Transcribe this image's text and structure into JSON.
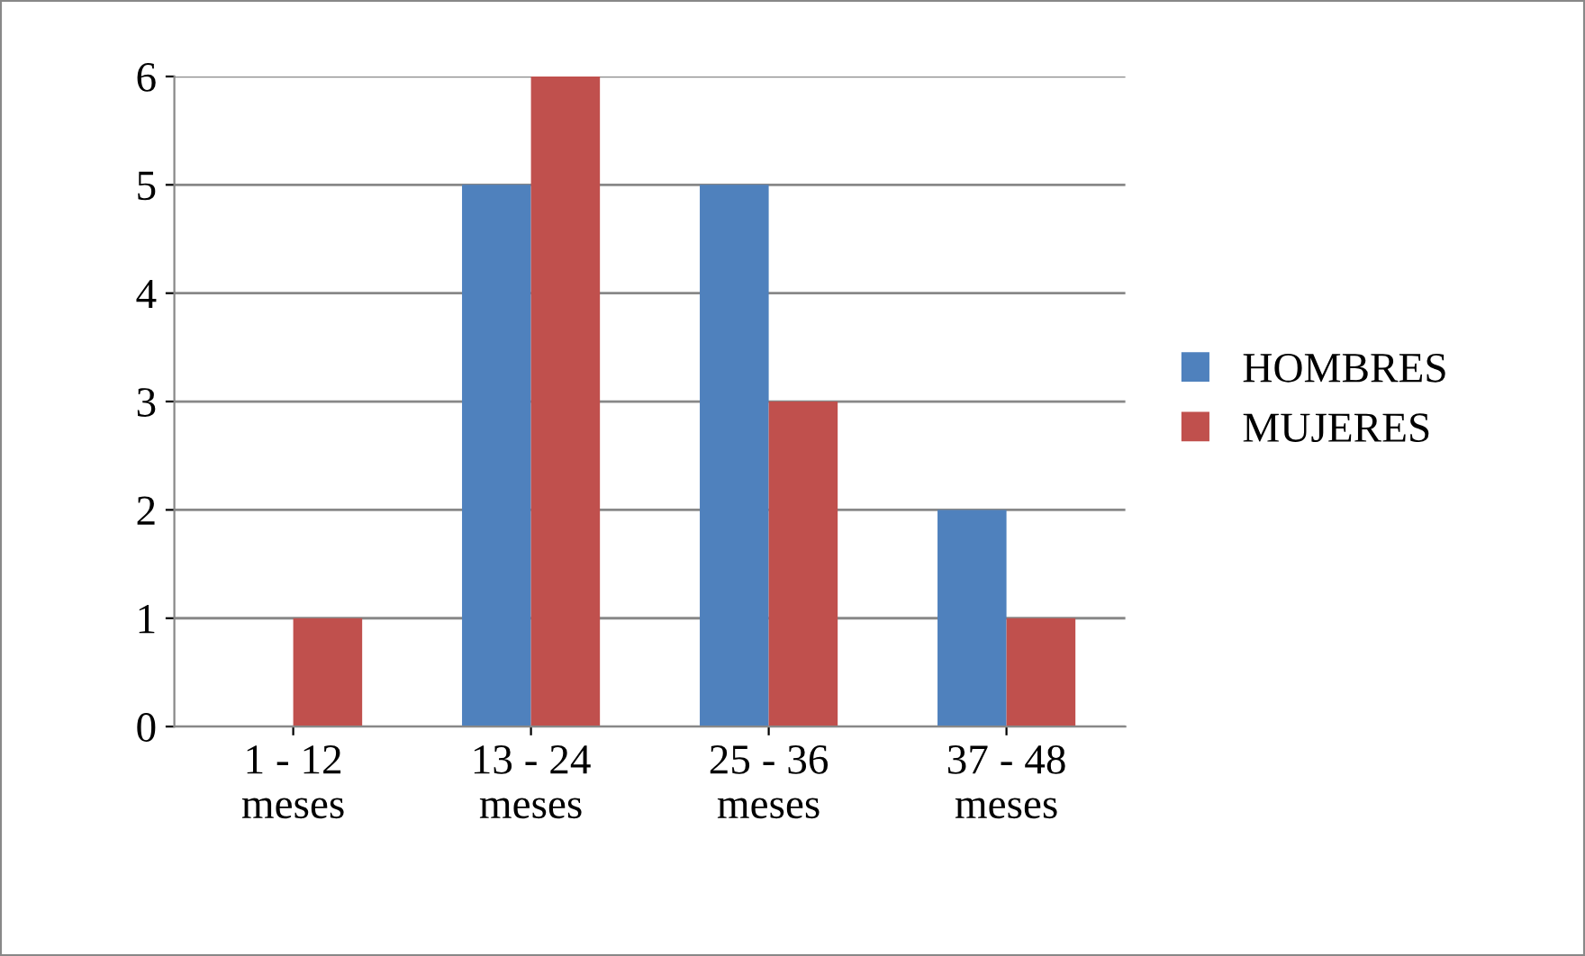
{
  "chart_data": {
    "type": "bar",
    "categories": [
      "1 - 12 meses",
      "13 - 24 meses",
      "25 - 36 meses",
      "37 - 48 meses"
    ],
    "series": [
      {
        "name": "HOMBRES",
        "color": "#4f81bd",
        "values": [
          0,
          5,
          5,
          2
        ]
      },
      {
        "name": "MUJERES",
        "color": "#c0504d",
        "values": [
          1,
          6,
          3,
          1
        ]
      }
    ],
    "ylim": [
      0,
      6
    ],
    "yticks": [
      0,
      1,
      2,
      3,
      4,
      5,
      6
    ],
    "grid": "y",
    "legend": "right"
  }
}
